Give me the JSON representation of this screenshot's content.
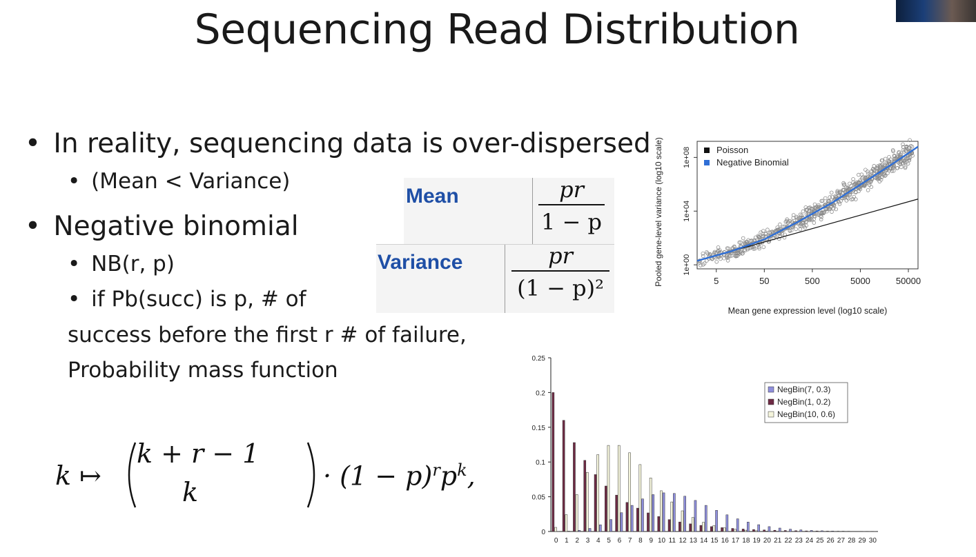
{
  "slide": {
    "title": "Sequencing Read Distribution"
  },
  "bullets": {
    "b1": "In reality, sequencing data is over-dispersed",
    "b1_sub": "(Mean < Variance)",
    "b2": "Negative binomial",
    "b2_sub1": "NB(r, p)",
    "b2_sub2": "if Pb(succ) is p, # of",
    "cont1": "success before the first r # of failure,",
    "cont2": "Probability mass function",
    "bullet_glyph": "•"
  },
  "table": {
    "mean_label": "Mean",
    "variance_label": "Variance",
    "mean_num": "pr",
    "mean_den": "1 − p",
    "var_num": "pr",
    "var_den": "(1 − p)²"
  },
  "formula": {
    "lhs": "k ↦",
    "binom_top": "k + r − 1",
    "binom_bottom": "k",
    "rhs": "· (1 − p)^r p^k,"
  },
  "chart_data": [
    {
      "type": "scatter",
      "title": "",
      "xlabel": "Mean gene expression level (log10 scale)",
      "ylabel": "Pooled gene-level variance (log10 scale)",
      "x_ticks": [
        "5",
        "50",
        "500",
        "5000",
        "50000"
      ],
      "y_ticks": [
        "1e+00",
        "1e+04",
        "1e+08"
      ],
      "x_scale": "log10",
      "y_scale": "log10",
      "x_range_log10": [
        0.3,
        4.9
      ],
      "y_range_log10": [
        -0.3,
        9.2
      ],
      "legend_position": "top-left",
      "series": [
        {
          "name": "Poisson",
          "color": "#111111",
          "line_log10": [
            [
              0.3,
              0.3
            ],
            [
              4.9,
              4.9
            ]
          ]
        },
        {
          "name": "Negative Binomial",
          "color": "#2f6fd6",
          "curve_log10": [
            [
              0.3,
              0.3
            ],
            [
              1.0,
              1.0
            ],
            [
              1.7,
              1.9
            ],
            [
              2.4,
              3.2
            ],
            [
              3.1,
              4.6
            ],
            [
              3.8,
              6.2
            ],
            [
              4.4,
              7.6
            ],
            [
              4.9,
              8.8
            ]
          ]
        },
        {
          "name": "genes",
          "color": "#8a8a8a",
          "marker": "open-circle"
        }
      ]
    },
    {
      "type": "bar",
      "title": "",
      "xlabel": "",
      "ylabel": "",
      "ylim": [
        0,
        0.25
      ],
      "y_ticks": [
        "0",
        "0.05",
        "0.1",
        "0.15",
        "0.2",
        "0.25"
      ],
      "categories": [
        "0",
        "1",
        "2",
        "3",
        "4",
        "5",
        "6",
        "7",
        "8",
        "9",
        "10",
        "11",
        "12",
        "13",
        "14",
        "15",
        "16",
        "17",
        "18",
        "19",
        "20",
        "21",
        "22",
        "23",
        "24",
        "25",
        "26",
        "27",
        "28",
        "29",
        "30"
      ],
      "legend_position": "top-right",
      "series": [
        {
          "name": "NegBin(7, 0.3)",
          "color": "#8f8fdc",
          "values": [
            0.0001,
            0.0005,
            0.0017,
            0.0045,
            0.0096,
            0.0173,
            0.0271,
            0.0376,
            0.0469,
            0.0531,
            0.0557,
            0.0548,
            0.0508,
            0.0447,
            0.0376,
            0.0305,
            0.024,
            0.0183,
            0.0136,
            0.0098,
            0.007,
            0.005,
            0.0034,
            0.0024,
            0.0016,
            0.0011,
            0.0007,
            0.0005,
            0.0003,
            0.0002,
            0.0001
          ]
        },
        {
          "name": "NegBin(1, 0.2)",
          "color": "#6e2a44",
          "values": [
            0.2,
            0.16,
            0.128,
            0.1024,
            0.0819,
            0.0655,
            0.0524,
            0.0419,
            0.0336,
            0.0268,
            0.0215,
            0.0172,
            0.0137,
            0.011,
            0.0088,
            0.007,
            0.0056,
            0.0045,
            0.0036,
            0.0029,
            0.0023,
            0.0018,
            0.0015,
            0.0012,
            0.0009,
            0.0008,
            0.0006,
            0.0005,
            0.0004,
            0.0003,
            0.0002
          ]
        },
        {
          "name": "NegBin(10, 0.6)",
          "color": "#f5f5dc",
          "values": [
            0.006,
            0.0242,
            0.0532,
            0.0851,
            0.1106,
            0.1239,
            0.1239,
            0.1133,
            0.0963,
            0.0771,
            0.0586,
            0.0426,
            0.0298,
            0.0202,
            0.0133,
            0.0085,
            0.0053,
            0.0032,
            0.0019,
            0.0011,
            0.0006,
            0.0004,
            0.0002,
            0.0001,
            0.0001,
            0,
            0,
            0,
            0,
            0,
            0
          ]
        }
      ]
    }
  ]
}
